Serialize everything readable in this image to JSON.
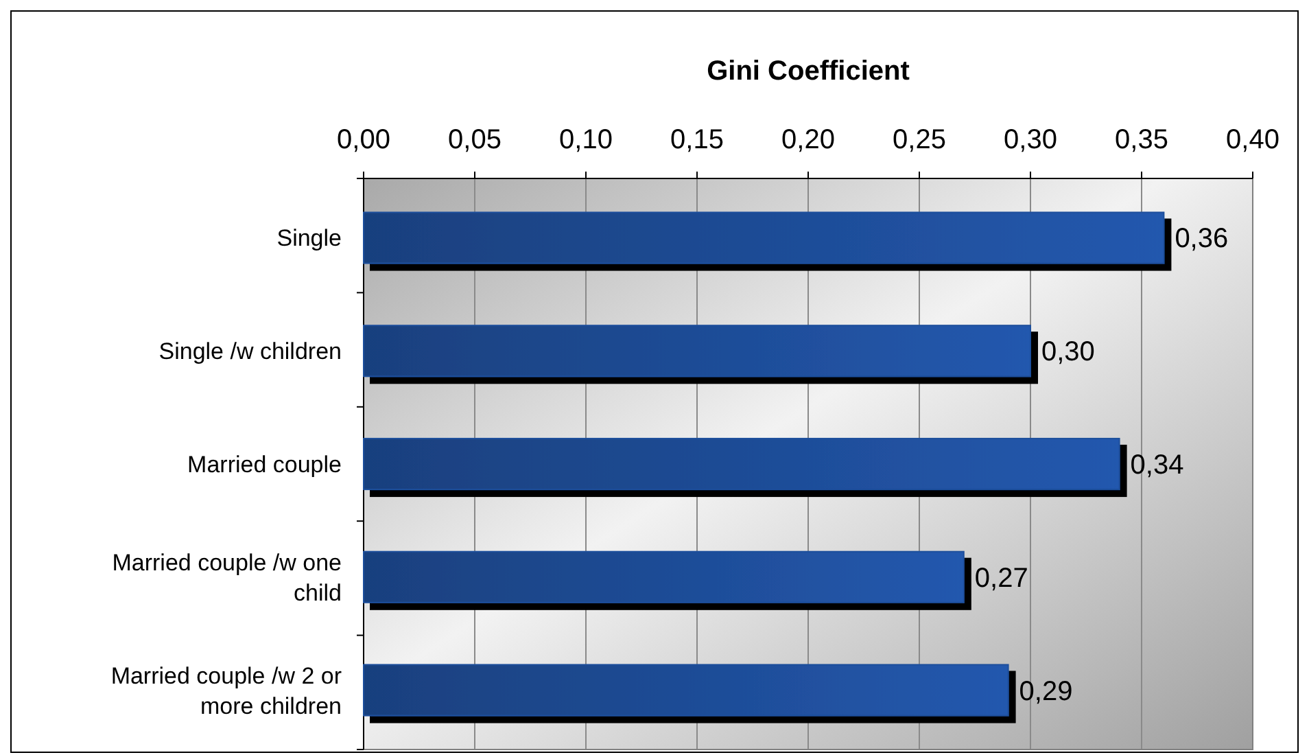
{
  "chart_data": {
    "type": "bar",
    "orientation": "horizontal",
    "title": "Gini Coefficient",
    "categories": [
      "Single",
      "Single /w children",
      "Married couple",
      "Married couple /w one child",
      "Married couple /w 2 or more children"
    ],
    "values": [
      0.36,
      0.3,
      0.34,
      0.27,
      0.29
    ],
    "value_labels": [
      "0,36",
      "0,30",
      "0,34",
      "0,27",
      "0,29"
    ],
    "color": "#1f4f9c",
    "xlim": [
      0,
      0.4
    ],
    "xticks": [
      {
        "value": 0,
        "label": "0,00"
      },
      {
        "value": 0.05,
        "label": "0,05"
      },
      {
        "value": 0.1,
        "label": "0,10"
      },
      {
        "value": 0.15,
        "label": "0,15"
      },
      {
        "value": 0.2,
        "label": "0,20"
      },
      {
        "value": 0.25,
        "label": "0,25"
      },
      {
        "value": 0.3,
        "label": "0,30"
      },
      {
        "value": 0.35,
        "label": "0,35"
      },
      {
        "value": 0.4,
        "label": "0,40"
      }
    ],
    "grid": "x"
  }
}
